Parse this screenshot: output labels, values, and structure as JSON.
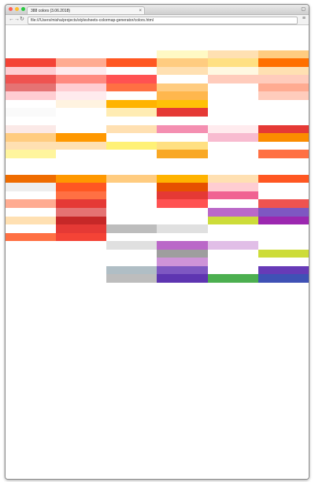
{
  "window": {
    "tab_title": "388 colors (3.06.2018)",
    "url": "file:///Users/misha/projects/stylesheets-colormap-generator/colors.html",
    "traffic_lights": [
      "#ff5f56",
      "#ffbd2e",
      "#27c93f"
    ]
  },
  "rows": [
    [
      "#ffffff",
      "#ffffff",
      "#ffffff",
      "#ffffff",
      "#ffffff",
      "#ffffff"
    ],
    [
      "#ffffff",
      "#ffffff",
      "#ffffff",
      "#ffffff",
      "#ffffff",
      "#ffffff"
    ],
    [
      "#ffffff",
      "#ffffff",
      "#ffffff",
      "#ffffff",
      "#ffffff",
      "#ffffff"
    ],
    [
      "#ffffff",
      "#ffffff",
      "#ffffff",
      "#fff9c4",
      "#ffe0b2",
      "#ffcc80"
    ],
    [
      "#f44336",
      "#ffab91",
      "#ff5722",
      "#ffcc80",
      "#ffe082",
      "#ff6f00"
    ],
    [
      "#ffcdd2",
      "#ffebee",
      "#ffffff",
      "#ffe0b2",
      "#fff8e1",
      "#ffe0b2"
    ],
    [
      "#ef5350",
      "#ff8a80",
      "#ff5252",
      "#ffffff",
      "#ffccbc",
      "#ffccbc"
    ],
    [
      "#e57373",
      "#ffcdd2",
      "#ff7043",
      "#ffcc80",
      "#ffffff",
      "#ffab91"
    ],
    [
      "#ffcdd2",
      "#ffebee",
      "#ffffff",
      "#ffb74d",
      "#ffffff",
      "#ffccbc"
    ],
    [
      "#ffffff",
      "#fff3e0",
      "#ffb300",
      "#ffc107",
      "#ffffff",
      "#ffffff"
    ],
    [
      "#fafafa",
      "#ffffff",
      "#ffecb3",
      "#e53935",
      "#ffffff",
      "#ffffff"
    ],
    [
      "#ffffff",
      "#ffffff",
      "#ffffff",
      "#ffffff",
      "#ffffff",
      "#ffffff"
    ],
    [
      "#fbe9e7",
      "#ffffff",
      "#ffe0b2",
      "#f48fb1",
      "#ffebee",
      "#e53935"
    ],
    [
      "#ffcc80",
      "#ff9800",
      "#ffffff",
      "#ffffff",
      "#f8bbd0",
      "#fb8c00"
    ],
    [
      "#ffe0b2",
      "#ffe0b2",
      "#fff176",
      "#ffe082",
      "#ffffff",
      "#ffffff"
    ],
    [
      "#fff59d",
      "#ffffff",
      "#ffffff",
      "#f9a825",
      "#ffffff",
      "#ff7043"
    ],
    [
      "#ffffff",
      "#ffffff",
      "#ffffff",
      "#ffffff",
      "#ffffff",
      "#ffffff"
    ],
    [
      "#ffffff",
      "#ffffff",
      "#ffffff",
      "#ffffff",
      "#ffffff",
      "#ffffff"
    ],
    [
      "#ef6c00",
      "#ff9800",
      "#ffcc80",
      "#ffb300",
      "#ffe0b2",
      "#ff5722"
    ],
    [
      "#eeeeee",
      "#ff5722",
      "#ffffff",
      "#e65100",
      "#ffcdd2",
      "#ffffff"
    ],
    [
      "#ffffff",
      "#ff7043",
      "#ffffff",
      "#e53935",
      "#f06292",
      "#ffffff"
    ],
    [
      "#ffab91",
      "#e53935",
      "#ffffff",
      "#ff5252",
      "#ffffff",
      "#ef5350"
    ],
    [
      "#ffffff",
      "#e57373",
      "#ffffff",
      "#ffffff",
      "#ba68c8",
      "#7e57c2"
    ],
    [
      "#ffe0b2",
      "#c62828",
      "#ffffff",
      "#ffffff",
      "#cddc39",
      "#9c27b0"
    ],
    [
      "#ffffff",
      "#e53935",
      "#bdbdbd",
      "#e0e0e0",
      "#ffffff",
      "#ffffff"
    ],
    [
      "#ff7043",
      "#f44336",
      "#ffffff",
      "#ffffff",
      "#ffffff",
      "#ffffff"
    ],
    [
      "#ffffff",
      "#ffffff",
      "#e0e0e0",
      "#ba68c8",
      "#e1bee7",
      "#ffffff"
    ],
    [
      "#ffffff",
      "#ffffff",
      "#ffffff",
      "#9e9e9e",
      "#ffffff",
      "#cddc39"
    ],
    [
      "#ffffff",
      "#ffffff",
      "#ffffff",
      "#ce93d8",
      "#ffffff",
      "#ffffff"
    ],
    [
      "#ffffff",
      "#ffffff",
      "#b0bec5",
      "#7e57c2",
      "#ffffff",
      "#673ab7"
    ],
    [
      "#ffffff",
      "#ffffff",
      "#bdbdbd",
      "#5e35b1",
      "#4caf50",
      "#3f51b5"
    ],
    [
      "#ffffff",
      "#ffffff",
      "#ffffff",
      "#ffffff",
      "#ffffff",
      "#ffffff"
    ],
    [
      "#ffffff",
      "#ffffff",
      "#ffffff",
      "#ffffff",
      "#ffffff",
      "#ffffff"
    ],
    [
      "#ffffff",
      "#ffffff",
      "#ffffff",
      "#ffffff",
      "#ffffff",
      "#ffffff"
    ],
    [
      "#ffffff",
      "#ffffff",
      "#ffffff",
      "#ffffff",
      "#ffffff",
      "#ffffff"
    ],
    [
      "#ffffff",
      "#ffffff",
      "#ffffff",
      "#ffffff",
      "#ffffff",
      "#ffffff"
    ],
    [
      "#ffffff",
      "#ffffff",
      "#ffffff",
      "#ffffff",
      "#ffffff",
      "#ffffff"
    ],
    [
      "#ffffff",
      "#ffffff",
      "#ffffff",
      "#ffffff",
      "#ffffff",
      "#ffffff"
    ],
    [
      "#ffffff",
      "#ffffff",
      "#ffffff",
      "#ffffff",
      "#ffffff",
      "#ffffff"
    ],
    [
      "#ffffff",
      "#ffffff",
      "#ffffff",
      "#ffffff",
      "#ffffff",
      "#ffffff"
    ],
    [
      "#ffffff",
      "#ffffff",
      "#ffffff",
      "#ffffff",
      "#ffffff",
      "#ffffff"
    ],
    [
      "#ffffff",
      "#ffffff",
      "#ffffff",
      "#ffffff",
      "#ffffff",
      "#ffffff"
    ],
    [
      "#ffffff",
      "#ffffff",
      "#ffffff",
      "#ffffff",
      "#ffffff",
      "#ffffff"
    ],
    [
      "#ffffff",
      "#ffffff",
      "#ffffff",
      "#ffffff",
      "#ffffff",
      "#ffffff"
    ],
    [
      "#ffffff",
      "#ffffff",
      "#ffffff",
      "#ffffff",
      "#ffffff",
      "#ffffff"
    ],
    [
      "#ffffff",
      "#ffffff",
      "#ffffff",
      "#ffffff",
      "#ffffff",
      "#ffffff"
    ],
    [
      "#ffffff",
      "#ffffff",
      "#ffffff",
      "#ffffff",
      "#ffffff",
      "#ffffff"
    ],
    [
      "#ffffff",
      "#ffffff",
      "#ffffff",
      "#ffffff",
      "#ffffff",
      "#ffffff"
    ],
    [
      "#ffffff",
      "#ffffff",
      "#ffffff",
      "#ffffff",
      "#ffffff",
      "#ffffff"
    ],
    [
      "#ffffff",
      "#ffffff",
      "#ffffff",
      "#ffffff",
      "#ffffff",
      "#ffffff"
    ],
    [
      "#ffffff",
      "#ffffff",
      "#ffffff",
      "#ffffff",
      "#ffffff",
      "#ffffff"
    ],
    [
      "#ffffff",
      "#ffffff",
      "#ffffff",
      "#ffffff",
      "#ffffff",
      "#ffffff"
    ],
    [
      "#ffffff",
      "#ffffff",
      "#ffffff",
      "#ffffff",
      "#ffffff",
      "#ffffff"
    ],
    [
      "#ffffff",
      "#ffffff",
      "#ffffff",
      "#ffffff",
      "#ffffff",
      "#ffffff"
    ],
    [
      "#ffffff",
      "#ffffff",
      "#ffffff",
      "#ffffff",
      "#ffffff",
      "#ffffff"
    ],
    [
      "#ffffff",
      "#ffffff",
      "#ffffff",
      "#ffffff",
      "#ffffff",
      "#ffffff"
    ]
  ]
}
